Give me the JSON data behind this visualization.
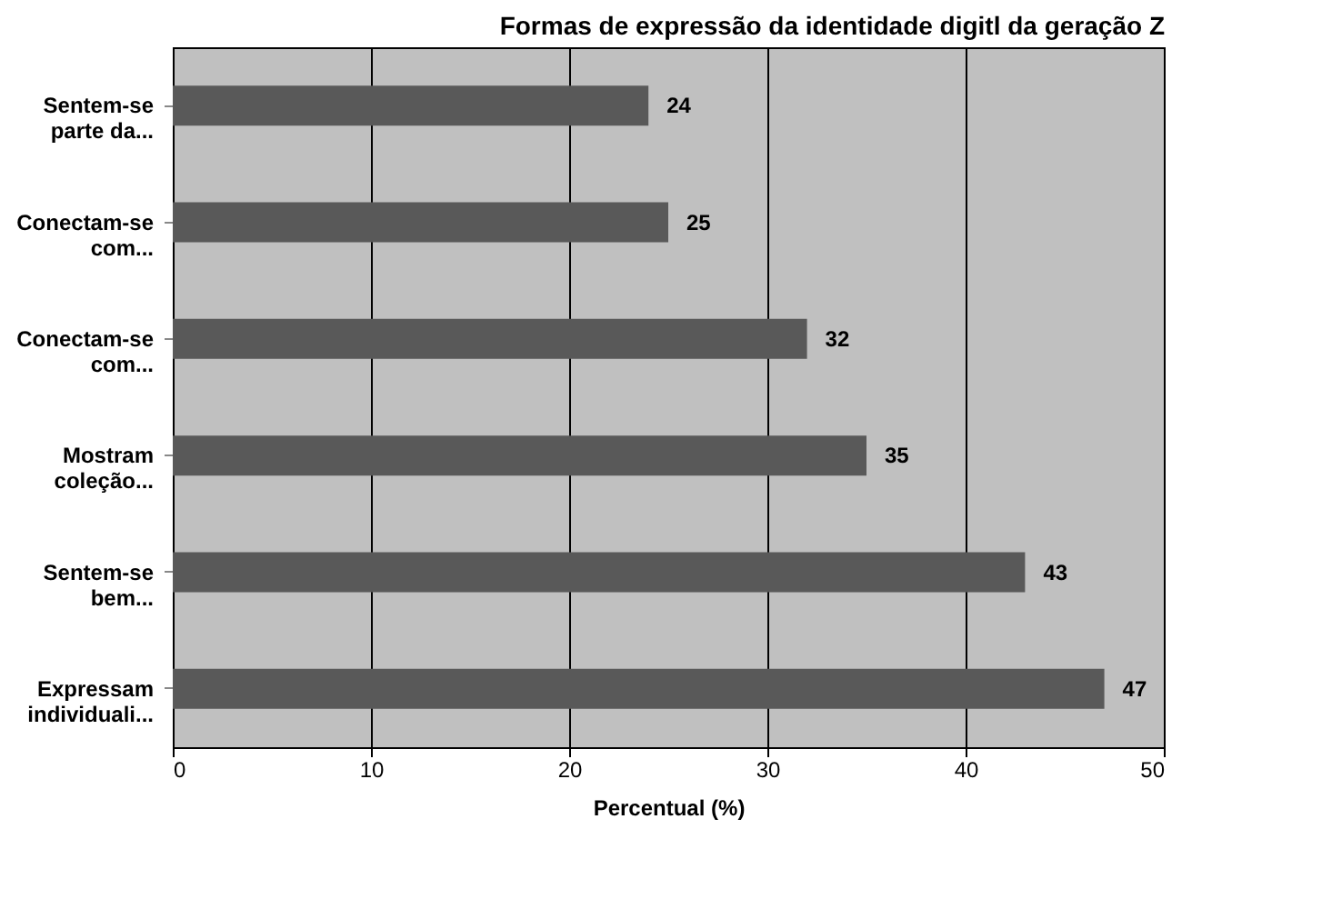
{
  "chart_data": {
    "type": "bar",
    "orientation": "horizontal",
    "title": "Formas de expressão da identidade digitl da geração Z",
    "xlabel": "Percentual (%)",
    "categories": [
      "Sentem-se parte da...",
      "Conectam-se com...",
      "Conectam-se com...",
      "Mostram coleção...",
      "Sentem-se bem...",
      "Expressam individuali..."
    ],
    "values": [
      24,
      25,
      32,
      35,
      43,
      47
    ],
    "color": "#595959",
    "xlim": [
      0,
      50
    ],
    "xticks": [
      0,
      10,
      20,
      30,
      40,
      50
    ],
    "grid": "x",
    "data_labels": true
  }
}
